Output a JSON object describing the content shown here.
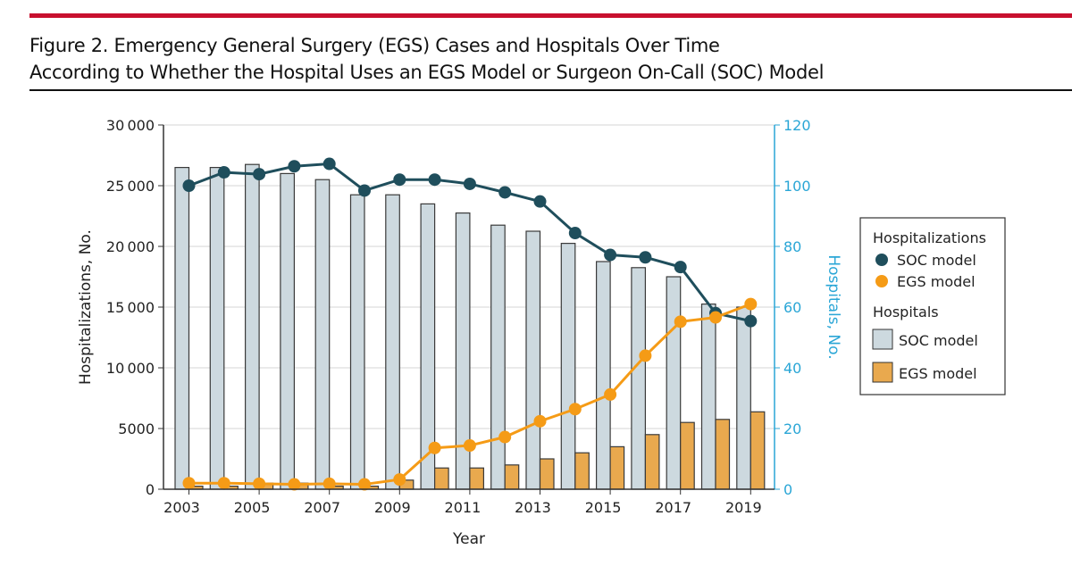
{
  "figure": {
    "title_line1": "Figure 2. Emergency General Surgery (EGS) Cases and Hospitals Over Time",
    "title_line2": "According to Whether the Hospital Uses an EGS Model or Surgeon On-Call (SOC) Model"
  },
  "colors": {
    "accent_bar": "#c8102e",
    "soc_line": "#1f4e5c",
    "egs_line": "#f59b16",
    "soc_bar": "#cdd9df",
    "egs_bar": "#e9a94e",
    "right_axis": "#2aa6d6"
  },
  "chart_data": {
    "type": "bar+line",
    "xlabel": "Year",
    "ylabel": "Hospitalizations, No.",
    "y2label": "Hospitals, No.",
    "ylim": [
      0,
      30000
    ],
    "y2lim": [
      0,
      120
    ],
    "yticks": [
      "0",
      "5000",
      "10000",
      "15000",
      "20000",
      "25000",
      "30000"
    ],
    "y2ticks": [
      "0",
      "20",
      "40",
      "60",
      "80",
      "100",
      "120"
    ],
    "xticks": [
      "2003",
      "2005",
      "2007",
      "2009",
      "2011",
      "2013",
      "2015",
      "2017",
      "2019"
    ],
    "x": [
      2003,
      2004,
      2005,
      2006,
      2007,
      2008,
      2009,
      2010,
      2011,
      2012,
      2013,
      2014,
      2015,
      2016,
      2017,
      2018,
      2019
    ],
    "grid": "horizontal",
    "legend": {
      "position": "right",
      "group1": "Hospitalizations",
      "group2": "Hospitals",
      "soc": "SOC model",
      "egs": "EGS model"
    },
    "series": [
      {
        "name": "Hospitalizations – SOC model",
        "axis": "left",
        "type": "line",
        "values": [
          25000,
          26100,
          25950,
          26600,
          26800,
          24600,
          25500,
          25500,
          25150,
          24450,
          23700,
          21100,
          19300,
          19100,
          18300,
          14500,
          13850
        ]
      },
      {
        "name": "Hospitalizations – EGS model",
        "axis": "left",
        "type": "line",
        "values": [
          500,
          500,
          450,
          400,
          450,
          400,
          800,
          3400,
          3600,
          4300,
          5600,
          6600,
          7800,
          11000,
          13800,
          14150,
          15250
        ]
      },
      {
        "name": "Hospitals – SOC model",
        "axis": "right",
        "type": "bar",
        "values": [
          106,
          106,
          107,
          104,
          102,
          97,
          97,
          94,
          91,
          87,
          85,
          81,
          75,
          73,
          70,
          61,
          60
        ]
      },
      {
        "name": "Hospitals – EGS model",
        "axis": "right",
        "type": "bar",
        "values": [
          1,
          1,
          2,
          2,
          1,
          1,
          3,
          7,
          7,
          8,
          10,
          12,
          14,
          18,
          22,
          23,
          25.5
        ]
      }
    ]
  }
}
